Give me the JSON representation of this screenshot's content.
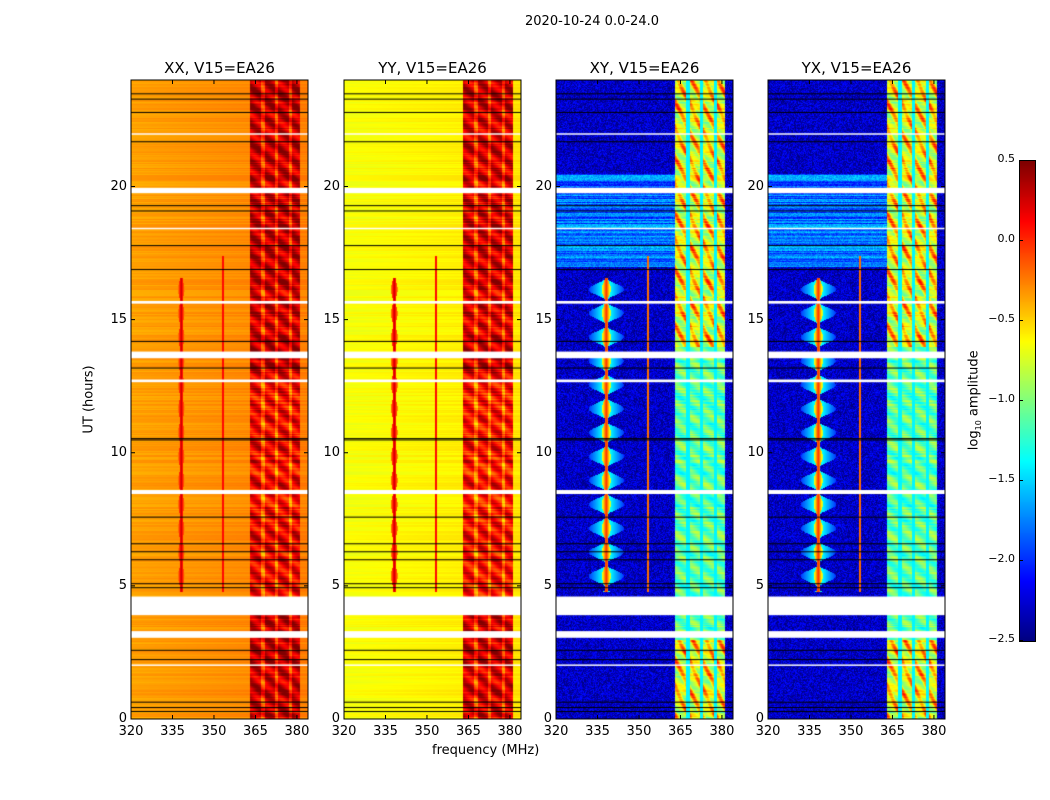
{
  "chart_data": {
    "type": "heatmap",
    "title": "2020-10-24 0.0-24.0",
    "xlabel": "frequency (MHz)",
    "ylabel": "UT (hours)",
    "xlim": [
      320,
      384
    ],
    "ylim": [
      0,
      24
    ],
    "xticks": [
      "320",
      "335",
      "350",
      "365",
      "380"
    ],
    "yticks": [
      "0",
      "5",
      "10",
      "15",
      "20"
    ],
    "xtick_values": [
      320,
      335,
      350,
      365,
      380
    ],
    "ytick_values": [
      0,
      5,
      10,
      15,
      20
    ],
    "panels": [
      {
        "title": "XX, V15=EA26",
        "base": -0.35,
        "band": 0.15,
        "spike": 0.3
      },
      {
        "title": "YY, V15=EA26",
        "base": -0.65,
        "band": 0.1,
        "spike": 0.3
      },
      {
        "title": "XY, V15=EA26",
        "base": -2.3,
        "band": -0.8,
        "spike": 0.0
      },
      {
        "title": "YX, V15=EA26",
        "base": -2.3,
        "band": -0.8,
        "spike": 0.0
      }
    ],
    "features": {
      "high_band_mhz": [
        363,
        381
      ],
      "band_gaps_mhz": [
        367.5,
        372.5,
        377.5
      ],
      "rfi_line_mhz": 338,
      "rfi_line_hours": [
        4.8,
        16.6
      ],
      "rfi_line2_mhz": 353,
      "rfi_line2_hours": [
        4.8,
        17.4
      ]
    },
    "flagged_hours_white": [
      [
        3.05,
        3.3
      ],
      [
        3.9,
        4.6
      ],
      [
        13.55,
        13.8
      ],
      [
        19.75,
        19.95
      ],
      [
        12.65,
        12.75
      ],
      [
        8.45,
        8.6
      ],
      [
        15.6,
        15.7
      ],
      [
        18.4,
        18.45
      ],
      [
        21.95,
        22.0
      ],
      [
        2.0,
        2.05
      ]
    ],
    "flagged_hours_black": [
      0.3,
      0.45,
      0.65,
      2.25,
      2.6,
      4.95,
      5.1,
      6.0,
      6.3,
      6.6,
      7.6,
      10.5,
      10.55,
      13.2,
      14.2,
      16.9,
      17.8,
      19.1,
      19.3,
      21.7,
      22.8,
      23.3,
      23.5
    ],
    "colorbar": {
      "label": "log10 amplitude",
      "label_main": "log",
      "label_sub": "10",
      "label_rest": " amplitude",
      "range": [
        -2.5,
        0.5
      ],
      "ticks": [
        "0.5",
        "0.0",
        "−0.5",
        "−1.0",
        "−1.5",
        "−2.0",
        "−2.5"
      ],
      "tick_values": [
        0.5,
        0.0,
        -0.5,
        -1.0,
        -1.5,
        -2.0,
        -2.5
      ],
      "colormap": "jet"
    }
  }
}
